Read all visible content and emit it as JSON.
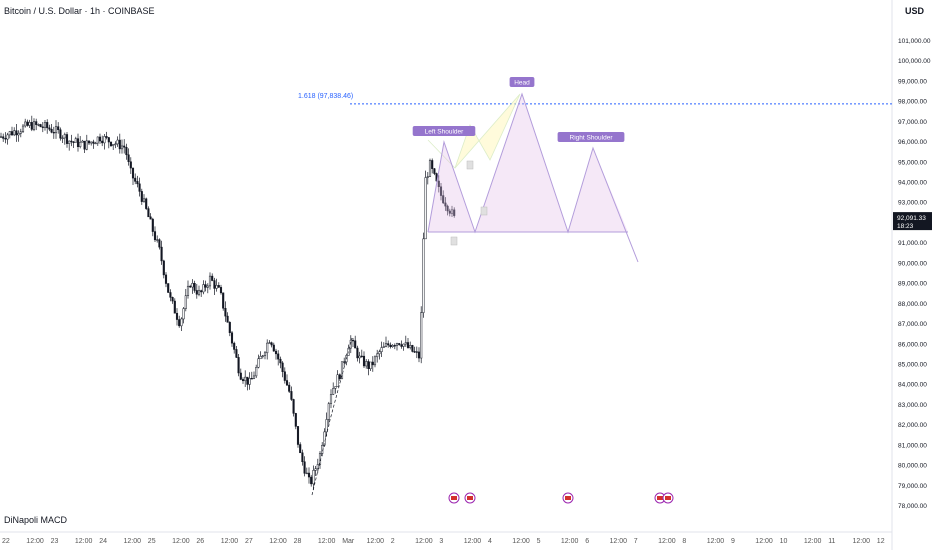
{
  "header": {
    "symbol": "Bitcoin / U.S. Dollar · 1h · COINBASE"
  },
  "currency": "USD",
  "indicator": {
    "name": "DiNapoli MACD"
  },
  "price_tag": {
    "price": "92,091.33",
    "countdown": "18:23"
  },
  "fib": {
    "label": "1.618 (97,838.46)",
    "value": 97838.46
  },
  "pattern_labels": {
    "left_shoulder": "Left Shoulder",
    "head": "Head",
    "right_shoulder": "Right Shoulder"
  },
  "colors": {
    "up": "#131722",
    "down": "#131722",
    "fib": "#2962ff",
    "pattern": "#9c27b0",
    "harmonic": "#c8e6c9"
  },
  "chart_data": {
    "type": "candlestick",
    "title": "Bitcoin / U.S. Dollar · 1h · COINBASE",
    "ylim": [
      77500,
      102000
    ],
    "y_ticks": [
      "101,000.00",
      "100,000.00",
      "99,000.00",
      "98,000.00",
      "97,000.00",
      "96,000.00",
      "95,000.00",
      "94,000.00",
      "93,000.00",
      "92,000.00",
      "91,000.00",
      "90,000.00",
      "89,000.00",
      "88,000.00",
      "87,000.00",
      "86,000.00",
      "85,000.00",
      "84,000.00",
      "83,000.00",
      "82,000.00",
      "81,000.00",
      "80,000.00",
      "79,000.00",
      "78,000.00"
    ],
    "x_ticks": [
      "22",
      "12:00",
      "23",
      "12:00",
      "24",
      "12:00",
      "25",
      "12:00",
      "26",
      "12:00",
      "27",
      "12:00",
      "28",
      "12:00",
      "Mar",
      "12:00",
      "2",
      "12:00",
      "3",
      "12:00",
      "4",
      "12:00",
      "5",
      "12:00",
      "6",
      "12:00",
      "7",
      "12:00",
      "8",
      "12:00",
      "9",
      "12:00",
      "10",
      "12:00",
      "11",
      "12:00",
      "12"
    ],
    "price_path": [
      [
        0,
        96200
      ],
      [
        15,
        96500
      ],
      [
        30,
        96800
      ],
      [
        45,
        96700
      ],
      [
        60,
        96400
      ],
      [
        70,
        96000
      ],
      [
        85,
        95800
      ],
      [
        100,
        96200
      ],
      [
        115,
        95900
      ],
      [
        125,
        95700
      ],
      [
        130,
        94500
      ],
      [
        140,
        93500
      ],
      [
        150,
        92000
      ],
      [
        160,
        90500
      ],
      [
        165,
        89300
      ],
      [
        170,
        88200
      ],
      [
        180,
        87000
      ],
      [
        190,
        89000
      ],
      [
        200,
        88400
      ],
      [
        210,
        89200
      ],
      [
        220,
        88500
      ],
      [
        230,
        86500
      ],
      [
        240,
        84500
      ],
      [
        250,
        84000
      ],
      [
        260,
        85200
      ],
      [
        270,
        86300
      ],
      [
        280,
        85000
      ],
      [
        290,
        83500
      ],
      [
        300,
        80500
      ],
      [
        310,
        79000
      ],
      [
        320,
        80500
      ],
      [
        330,
        83500
      ],
      [
        340,
        84500
      ],
      [
        350,
        86200
      ],
      [
        360,
        85200
      ],
      [
        370,
        84800
      ],
      [
        380,
        85600
      ],
      [
        390,
        86000
      ],
      [
        400,
        86100
      ],
      [
        410,
        85700
      ],
      [
        420,
        85300
      ],
      [
        425,
        94000
      ],
      [
        430,
        94800
      ],
      [
        440,
        93400
      ],
      [
        450,
        92600
      ],
      [
        455,
        92100
      ]
    ],
    "annotations": [
      {
        "type": "hline",
        "label": "1.618 (97,838.46)",
        "value": 97838.46
      },
      {
        "type": "head_and_shoulders",
        "points": [
          "Left Shoulder",
          "Head",
          "Right Shoulder"
        ]
      }
    ],
    "last_price": 92091.33
  }
}
